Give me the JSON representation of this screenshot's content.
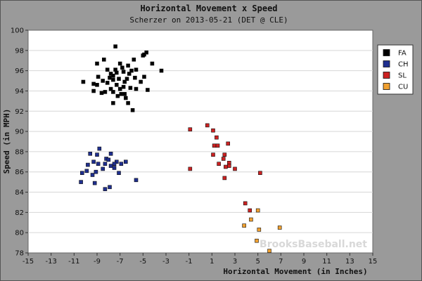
{
  "chart_data": {
    "type": "scatter",
    "title": "Horizontal Movement x Speed",
    "subtitle": "Scherzer on 2013-05-21 (DET @ CLE)",
    "xlabel": "Horizontal Movement (in Inches)",
    "ylabel": "Speed (in MPH)",
    "xlim": [
      -15,
      15
    ],
    "ylim": [
      78,
      100
    ],
    "xticks": [
      -15,
      -13,
      -11,
      -9,
      -7,
      -5,
      -3,
      -1,
      1,
      3,
      5,
      7,
      9,
      11,
      13,
      15
    ],
    "yticks": [
      78,
      80,
      82,
      84,
      86,
      88,
      90,
      92,
      94,
      96,
      98,
      100
    ],
    "grid": true,
    "legend_position": "right",
    "watermark": "BrooksBaseball.net",
    "series": [
      {
        "name": "FA",
        "color": "#000000",
        "points": [
          [
            -7.4,
            98.4
          ],
          [
            -4.7,
            97.8
          ],
          [
            -8.4,
            97.1
          ],
          [
            -5.8,
            97.1
          ],
          [
            -5.0,
            97.5
          ],
          [
            -4.9,
            97.6
          ],
          [
            -9.0,
            96.7
          ],
          [
            -7.0,
            96.7
          ],
          [
            -4.2,
            96.7
          ],
          [
            -6.3,
            96.5
          ],
          [
            -7.4,
            96.1
          ],
          [
            -6.8,
            96.3
          ],
          [
            -8.1,
            96.1
          ],
          [
            -5.6,
            96.1
          ],
          [
            -6.0,
            96.0
          ],
          [
            -3.4,
            96.0
          ],
          [
            -7.8,
            95.7
          ],
          [
            -7.3,
            95.8
          ],
          [
            -6.7,
            95.9
          ],
          [
            -6.2,
            95.7
          ],
          [
            -7.9,
            95.3
          ],
          [
            -7.6,
            95.5
          ],
          [
            -8.9,
            95.4
          ],
          [
            -6.4,
            95.2
          ],
          [
            -5.7,
            95.3
          ],
          [
            -4.9,
            95.4
          ],
          [
            -8.5,
            95.0
          ],
          [
            -7.6,
            95.1
          ],
          [
            -7.1,
            95.2
          ],
          [
            -6.6,
            94.9
          ],
          [
            -10.2,
            94.9
          ],
          [
            -9.3,
            94.7
          ],
          [
            -8.1,
            94.8
          ],
          [
            -7.3,
            94.6
          ],
          [
            -6.7,
            94.4
          ],
          [
            -5.2,
            94.9
          ],
          [
            -9.0,
            94.6
          ],
          [
            -7.8,
            94.2
          ],
          [
            -7.0,
            94.2
          ],
          [
            -6.1,
            94.3
          ],
          [
            -5.6,
            94.2
          ],
          [
            -4.6,
            94.1
          ],
          [
            -9.3,
            94.0
          ],
          [
            -8.3,
            93.9
          ],
          [
            -7.6,
            93.9
          ],
          [
            -6.9,
            93.7
          ],
          [
            -8.6,
            93.8
          ],
          [
            -7.2,
            93.5
          ],
          [
            -6.6,
            93.7
          ],
          [
            -6.5,
            93.3
          ],
          [
            -7.6,
            92.8
          ],
          [
            -6.3,
            92.8
          ],
          [
            -5.9,
            92.1
          ]
        ]
      },
      {
        "name": "CH",
        "color": "#1f2f8f",
        "points": [
          [
            -8.8,
            88.3
          ],
          [
            -9.6,
            87.8
          ],
          [
            -7.8,
            87.8
          ],
          [
            -9.0,
            87.7
          ],
          [
            -8.2,
            87.3
          ],
          [
            -9.3,
            87.0
          ],
          [
            -8.0,
            87.2
          ],
          [
            -7.3,
            87.0
          ],
          [
            -6.5,
            87.0
          ],
          [
            -8.3,
            86.8
          ],
          [
            -7.5,
            86.8
          ],
          [
            -9.8,
            86.7
          ],
          [
            -8.9,
            86.8
          ],
          [
            -7.8,
            86.6
          ],
          [
            -6.9,
            86.8
          ],
          [
            -7.5,
            86.4
          ],
          [
            -8.5,
            86.3
          ],
          [
            -9.9,
            86.1
          ],
          [
            -10.3,
            85.9
          ],
          [
            -9.1,
            86.0
          ],
          [
            -7.1,
            85.9
          ],
          [
            -9.4,
            85.7
          ],
          [
            -5.6,
            85.2
          ],
          [
            -10.4,
            85.0
          ],
          [
            -9.2,
            84.9
          ],
          [
            -7.9,
            84.5
          ],
          [
            -8.3,
            84.3
          ]
        ]
      },
      {
        "name": "SL",
        "color": "#cc2222",
        "points": [
          [
            -0.9,
            90.2
          ],
          [
            0.6,
            90.6
          ],
          [
            1.1,
            90.1
          ],
          [
            1.4,
            89.4
          ],
          [
            1.2,
            88.6
          ],
          [
            1.5,
            88.6
          ],
          [
            2.4,
            88.8
          ],
          [
            1.1,
            87.7
          ],
          [
            2.1,
            87.7
          ],
          [
            2.0,
            87.3
          ],
          [
            1.6,
            86.8
          ],
          [
            2.5,
            86.9
          ],
          [
            2.5,
            86.6
          ],
          [
            2.2,
            86.5
          ],
          [
            -0.9,
            86.3
          ],
          [
            3.0,
            86.3
          ],
          [
            5.2,
            85.9
          ],
          [
            2.1,
            85.4
          ]
        ]
      },
      {
        "name": "CU",
        "color": "#f0a030",
        "points": [
          [
            4.4,
            81.3
          ],
          [
            5.1,
            80.3
          ],
          [
            6.9,
            80.5
          ],
          [
            3.8,
            80.7
          ],
          [
            4.9,
            79.2
          ],
          [
            6.0,
            78.2
          ]
        ]
      },
      {
        "name": "SL",
        "color": "#cc2222",
        "points": [
          [
            3.9,
            82.9
          ],
          [
            4.3,
            82.2
          ]
        ]
      },
      {
        "name": "CU",
        "color": "#f0a030",
        "points": [
          [
            5.0,
            82.2
          ]
        ]
      }
    ]
  },
  "legend": {
    "items": [
      {
        "label": "FA",
        "color": "#000000"
      },
      {
        "label": "CH",
        "color": "#1f2f8f"
      },
      {
        "label": "SL",
        "color": "#cc2222"
      },
      {
        "label": "CU",
        "color": "#f0a030"
      }
    ]
  }
}
